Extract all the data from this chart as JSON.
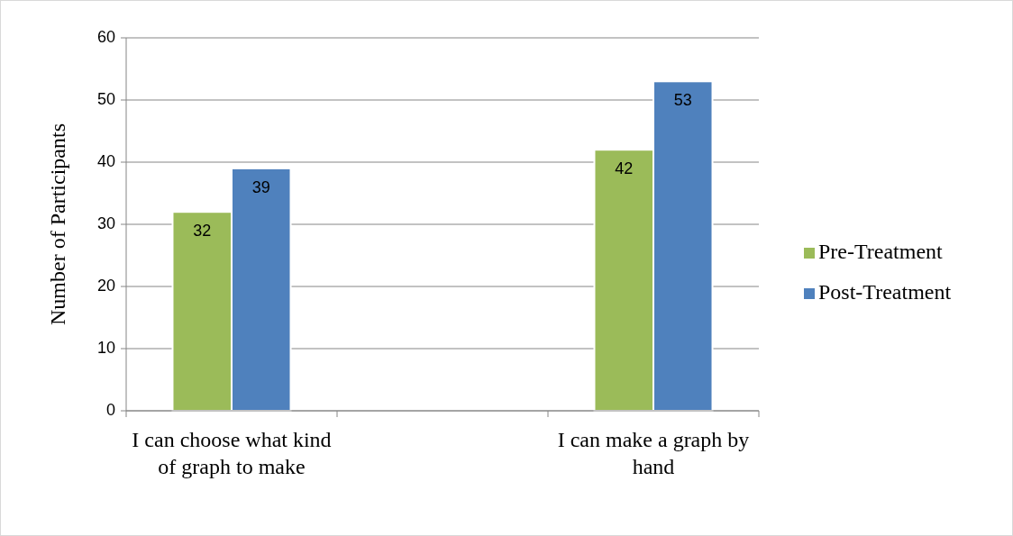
{
  "chart_data": {
    "type": "bar",
    "ylabel": "Number of Participants",
    "categories": [
      "I can choose what kind of graph to make",
      null,
      "I can make a graph by hand"
    ],
    "series": [
      {
        "name": "Pre-Treatment",
        "color": "#9bbb59",
        "values": [
          32,
          null,
          42
        ]
      },
      {
        "name": "Post-Treatment",
        "color": "#4f81bd",
        "values": [
          39,
          null,
          53
        ]
      }
    ],
    "ylim": [
      0,
      60
    ],
    "yticks": [
      0,
      10,
      20,
      30,
      40,
      50,
      60
    ],
    "grid": "y",
    "legend": "right",
    "data_labels": true
  }
}
